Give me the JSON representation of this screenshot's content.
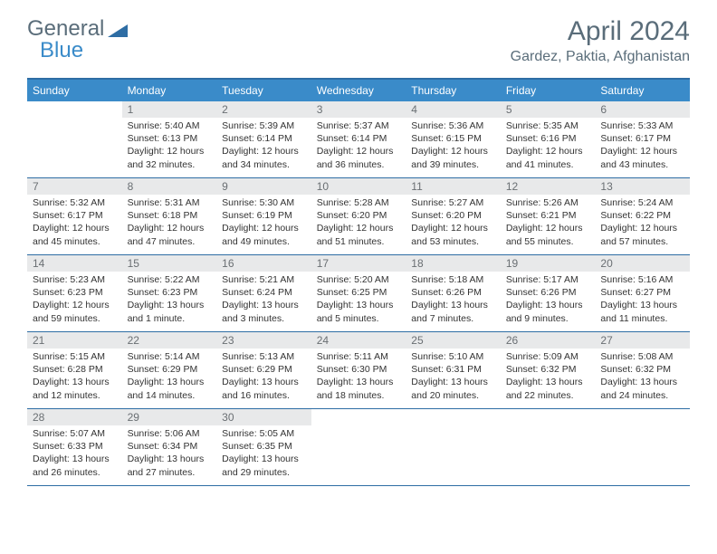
{
  "logo": {
    "text1": "General",
    "text2": "Blue"
  },
  "title": "April 2024",
  "location": "Gardez, Paktia, Afghanistan",
  "day_names": [
    "Sunday",
    "Monday",
    "Tuesday",
    "Wednesday",
    "Thursday",
    "Friday",
    "Saturday"
  ],
  "colors": {
    "header_bg": "#3a8bc9",
    "daynum_bg": "#e8e9ea",
    "rule": "#2e6da4",
    "text_muted": "#5a6d7a"
  },
  "weeks": [
    [
      {
        "n": "",
        "sunrise": "",
        "sunset": "",
        "daylight": ""
      },
      {
        "n": "1",
        "sunrise": "Sunrise: 5:40 AM",
        "sunset": "Sunset: 6:13 PM",
        "daylight": "Daylight: 12 hours and 32 minutes."
      },
      {
        "n": "2",
        "sunrise": "Sunrise: 5:39 AM",
        "sunset": "Sunset: 6:14 PM",
        "daylight": "Daylight: 12 hours and 34 minutes."
      },
      {
        "n": "3",
        "sunrise": "Sunrise: 5:37 AM",
        "sunset": "Sunset: 6:14 PM",
        "daylight": "Daylight: 12 hours and 36 minutes."
      },
      {
        "n": "4",
        "sunrise": "Sunrise: 5:36 AM",
        "sunset": "Sunset: 6:15 PM",
        "daylight": "Daylight: 12 hours and 39 minutes."
      },
      {
        "n": "5",
        "sunrise": "Sunrise: 5:35 AM",
        "sunset": "Sunset: 6:16 PM",
        "daylight": "Daylight: 12 hours and 41 minutes."
      },
      {
        "n": "6",
        "sunrise": "Sunrise: 5:33 AM",
        "sunset": "Sunset: 6:17 PM",
        "daylight": "Daylight: 12 hours and 43 minutes."
      }
    ],
    [
      {
        "n": "7",
        "sunrise": "Sunrise: 5:32 AM",
        "sunset": "Sunset: 6:17 PM",
        "daylight": "Daylight: 12 hours and 45 minutes."
      },
      {
        "n": "8",
        "sunrise": "Sunrise: 5:31 AM",
        "sunset": "Sunset: 6:18 PM",
        "daylight": "Daylight: 12 hours and 47 minutes."
      },
      {
        "n": "9",
        "sunrise": "Sunrise: 5:30 AM",
        "sunset": "Sunset: 6:19 PM",
        "daylight": "Daylight: 12 hours and 49 minutes."
      },
      {
        "n": "10",
        "sunrise": "Sunrise: 5:28 AM",
        "sunset": "Sunset: 6:20 PM",
        "daylight": "Daylight: 12 hours and 51 minutes."
      },
      {
        "n": "11",
        "sunrise": "Sunrise: 5:27 AM",
        "sunset": "Sunset: 6:20 PM",
        "daylight": "Daylight: 12 hours and 53 minutes."
      },
      {
        "n": "12",
        "sunrise": "Sunrise: 5:26 AM",
        "sunset": "Sunset: 6:21 PM",
        "daylight": "Daylight: 12 hours and 55 minutes."
      },
      {
        "n": "13",
        "sunrise": "Sunrise: 5:24 AM",
        "sunset": "Sunset: 6:22 PM",
        "daylight": "Daylight: 12 hours and 57 minutes."
      }
    ],
    [
      {
        "n": "14",
        "sunrise": "Sunrise: 5:23 AM",
        "sunset": "Sunset: 6:23 PM",
        "daylight": "Daylight: 12 hours and 59 minutes."
      },
      {
        "n": "15",
        "sunrise": "Sunrise: 5:22 AM",
        "sunset": "Sunset: 6:23 PM",
        "daylight": "Daylight: 13 hours and 1 minute."
      },
      {
        "n": "16",
        "sunrise": "Sunrise: 5:21 AM",
        "sunset": "Sunset: 6:24 PM",
        "daylight": "Daylight: 13 hours and 3 minutes."
      },
      {
        "n": "17",
        "sunrise": "Sunrise: 5:20 AM",
        "sunset": "Sunset: 6:25 PM",
        "daylight": "Daylight: 13 hours and 5 minutes."
      },
      {
        "n": "18",
        "sunrise": "Sunrise: 5:18 AM",
        "sunset": "Sunset: 6:26 PM",
        "daylight": "Daylight: 13 hours and 7 minutes."
      },
      {
        "n": "19",
        "sunrise": "Sunrise: 5:17 AM",
        "sunset": "Sunset: 6:26 PM",
        "daylight": "Daylight: 13 hours and 9 minutes."
      },
      {
        "n": "20",
        "sunrise": "Sunrise: 5:16 AM",
        "sunset": "Sunset: 6:27 PM",
        "daylight": "Daylight: 13 hours and 11 minutes."
      }
    ],
    [
      {
        "n": "21",
        "sunrise": "Sunrise: 5:15 AM",
        "sunset": "Sunset: 6:28 PM",
        "daylight": "Daylight: 13 hours and 12 minutes."
      },
      {
        "n": "22",
        "sunrise": "Sunrise: 5:14 AM",
        "sunset": "Sunset: 6:29 PM",
        "daylight": "Daylight: 13 hours and 14 minutes."
      },
      {
        "n": "23",
        "sunrise": "Sunrise: 5:13 AM",
        "sunset": "Sunset: 6:29 PM",
        "daylight": "Daylight: 13 hours and 16 minutes."
      },
      {
        "n": "24",
        "sunrise": "Sunrise: 5:11 AM",
        "sunset": "Sunset: 6:30 PM",
        "daylight": "Daylight: 13 hours and 18 minutes."
      },
      {
        "n": "25",
        "sunrise": "Sunrise: 5:10 AM",
        "sunset": "Sunset: 6:31 PM",
        "daylight": "Daylight: 13 hours and 20 minutes."
      },
      {
        "n": "26",
        "sunrise": "Sunrise: 5:09 AM",
        "sunset": "Sunset: 6:32 PM",
        "daylight": "Daylight: 13 hours and 22 minutes."
      },
      {
        "n": "27",
        "sunrise": "Sunrise: 5:08 AM",
        "sunset": "Sunset: 6:32 PM",
        "daylight": "Daylight: 13 hours and 24 minutes."
      }
    ],
    [
      {
        "n": "28",
        "sunrise": "Sunrise: 5:07 AM",
        "sunset": "Sunset: 6:33 PM",
        "daylight": "Daylight: 13 hours and 26 minutes."
      },
      {
        "n": "29",
        "sunrise": "Sunrise: 5:06 AM",
        "sunset": "Sunset: 6:34 PM",
        "daylight": "Daylight: 13 hours and 27 minutes."
      },
      {
        "n": "30",
        "sunrise": "Sunrise: 5:05 AM",
        "sunset": "Sunset: 6:35 PM",
        "daylight": "Daylight: 13 hours and 29 minutes."
      },
      {
        "n": "",
        "sunrise": "",
        "sunset": "",
        "daylight": ""
      },
      {
        "n": "",
        "sunrise": "",
        "sunset": "",
        "daylight": ""
      },
      {
        "n": "",
        "sunrise": "",
        "sunset": "",
        "daylight": ""
      },
      {
        "n": "",
        "sunrise": "",
        "sunset": "",
        "daylight": ""
      }
    ]
  ]
}
